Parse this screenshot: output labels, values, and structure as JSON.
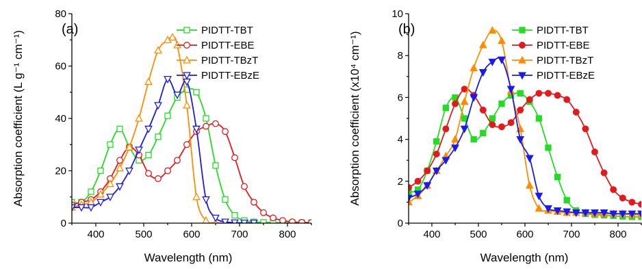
{
  "chart_data": [
    {
      "type": "line",
      "panel_label": "(a)",
      "xlabel": "Wavelength (nm)",
      "ylabel": "Absorption coefficient (L g⁻¹ cm⁻¹)",
      "xlim": [
        350,
        850
      ],
      "ylim": [
        0,
        80
      ],
      "xticks": [
        400,
        500,
        600,
        700,
        800
      ],
      "yticks": [
        0,
        20,
        40,
        60,
        80
      ],
      "legend_position": "top-right",
      "series": [
        {
          "name": "PIDTT-TBT",
          "color": "#22dd22",
          "marker": "square-open",
          "x": [
            350,
            370,
            390,
            410,
            430,
            450,
            470,
            490,
            510,
            530,
            550,
            570,
            590,
            610,
            630,
            650,
            670,
            690,
            710,
            730,
            750,
            770,
            790,
            810,
            830,
            850
          ],
          "y": [
            8,
            8,
            12,
            20,
            30,
            36,
            29,
            24,
            26,
            33,
            41,
            48,
            51,
            50,
            40,
            22,
            9,
            3,
            1,
            0.5,
            0.3,
            0.2,
            0.2,
            0.2,
            0.2,
            0.2
          ]
        },
        {
          "name": "PIDTT-EBE",
          "color": "#e31a1c",
          "marker": "circle-open",
          "x": [
            350,
            370,
            390,
            410,
            430,
            450,
            470,
            490,
            510,
            530,
            550,
            570,
            590,
            610,
            630,
            650,
            670,
            690,
            710,
            730,
            750,
            770,
            790,
            810,
            830,
            850
          ],
          "y": [
            7,
            8,
            9,
            12,
            17,
            24,
            29,
            26,
            19,
            17,
            20,
            24,
            30,
            35,
            37,
            38,
            35,
            25,
            14,
            8,
            4,
            2,
            1,
            0.5,
            0.3,
            0.2
          ]
        },
        {
          "name": "PIDTT-TBzT",
          "color": "#ff8c00",
          "marker": "triangle-up-open",
          "x": [
            350,
            370,
            390,
            410,
            430,
            450,
            470,
            490,
            510,
            530,
            550,
            560,
            570,
            590,
            610,
            630,
            650,
            670
          ],
          "y": [
            6,
            7,
            8,
            11,
            15,
            21,
            29,
            40,
            54,
            66,
            70,
            71,
            68,
            45,
            10,
            1,
            0.2,
            0.1
          ]
        },
        {
          "name": "PIDTT-EBzE",
          "color": "#1a1aee",
          "marker": "triangle-down-open",
          "x": [
            350,
            370,
            390,
            410,
            430,
            450,
            470,
            490,
            510,
            530,
            550,
            570,
            590,
            610,
            630,
            650,
            670,
            690,
            710,
            730
          ],
          "y": [
            6,
            6,
            6,
            8,
            10,
            14,
            20,
            28,
            36,
            45,
            55,
            49,
            54,
            36,
            9,
            2,
            0.5,
            0.2,
            0.1,
            0.1
          ]
        }
      ]
    },
    {
      "type": "line",
      "panel_label": "(b)",
      "xlabel": "Wavelength (nm)",
      "ylabel": "Absorption coefficient (x10⁴ cm⁻¹)",
      "xlim": [
        350,
        850
      ],
      "ylim": [
        0,
        10
      ],
      "xticks": [
        400,
        500,
        600,
        700,
        800
      ],
      "yticks": [
        0,
        2,
        4,
        6,
        8,
        10
      ],
      "legend_position": "top-right",
      "series": [
        {
          "name": "PIDTT-TBT",
          "color": "#22dd22",
          "marker": "square-filled",
          "x": [
            350,
            370,
            390,
            410,
            430,
            450,
            470,
            490,
            510,
            530,
            550,
            570,
            590,
            610,
            630,
            650,
            670,
            690,
            710,
            730,
            750,
            770,
            790,
            810,
            830,
            850
          ],
          "y": [
            1.5,
            1.6,
            2.5,
            3.9,
            5.5,
            6.0,
            5.0,
            4.0,
            4.3,
            5.0,
            5.7,
            6.1,
            6.2,
            5.8,
            5.0,
            3.6,
            2.2,
            1.1,
            0.6,
            0.45,
            0.4,
            0.38,
            0.35,
            0.32,
            0.3,
            0.3
          ]
        },
        {
          "name": "PIDTT-EBE",
          "color": "#e31a1c",
          "marker": "circle-filled",
          "x": [
            350,
            370,
            390,
            410,
            430,
            450,
            470,
            490,
            510,
            530,
            550,
            570,
            590,
            610,
            630,
            650,
            670,
            690,
            710,
            730,
            750,
            770,
            790,
            810,
            830,
            850
          ],
          "y": [
            1.7,
            2.0,
            2.5,
            3.3,
            4.5,
            5.7,
            6.4,
            6.1,
            5.4,
            4.7,
            4.6,
            4.8,
            5.4,
            5.9,
            6.2,
            6.2,
            6.1,
            5.9,
            5.3,
            4.5,
            3.4,
            2.4,
            1.6,
            1.2,
            1.0,
            0.9
          ]
        },
        {
          "name": "PIDTT-TBzT",
          "color": "#ff8c00",
          "marker": "triangle-up-filled",
          "x": [
            350,
            370,
            390,
            410,
            430,
            450,
            470,
            490,
            510,
            530,
            550,
            570,
            590,
            610,
            630,
            650,
            670,
            690,
            710,
            730,
            750,
            770,
            790,
            810,
            830,
            850
          ],
          "y": [
            1.0,
            1.3,
            1.8,
            2.5,
            3.2,
            4.0,
            5.8,
            7.4,
            8.5,
            9.2,
            8.7,
            6.3,
            4.5,
            1.8,
            0.7,
            0.6,
            0.55,
            0.5,
            0.5,
            0.5,
            0.45,
            0.45,
            0.45,
            0.45,
            0.4,
            0.4
          ]
        },
        {
          "name": "PIDTT-EBzE",
          "color": "#1a1aee",
          "marker": "triangle-down-filled",
          "x": [
            350,
            370,
            390,
            410,
            430,
            450,
            470,
            490,
            510,
            530,
            550,
            570,
            590,
            610,
            630,
            650,
            670,
            690,
            710,
            730,
            750,
            770,
            790,
            810,
            830,
            850
          ],
          "y": [
            1.2,
            1.4,
            1.8,
            2.5,
            3.0,
            3.6,
            4.5,
            6.0,
            7.2,
            7.7,
            7.8,
            6.4,
            4.0,
            3.1,
            1.3,
            0.7,
            0.6,
            0.55,
            0.5,
            0.5,
            0.5,
            0.5,
            0.45,
            0.45,
            0.45,
            0.45
          ]
        }
      ]
    }
  ]
}
